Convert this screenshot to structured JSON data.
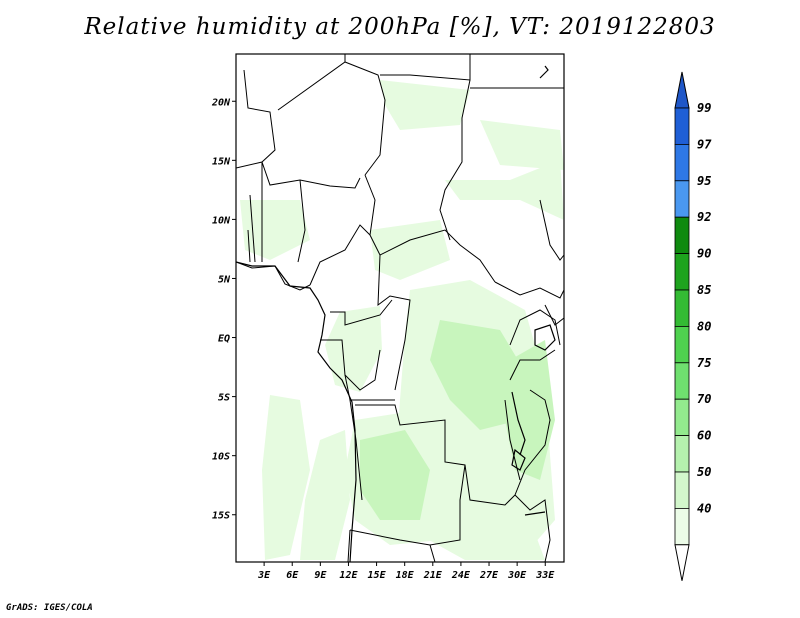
{
  "title": "Relative humidity at 200hPa [%], VT: 2019122803",
  "credit": "GrADS: IGES/COLA",
  "map": {
    "lat_range": [
      -19,
      24
    ],
    "lon_range": [
      0,
      35
    ],
    "lat_labels": [
      {
        "v": 20,
        "t": "20N"
      },
      {
        "v": 15,
        "t": "15N"
      },
      {
        "v": 10,
        "t": "10N"
      },
      {
        "v": 5,
        "t": "5N"
      },
      {
        "v": 0,
        "t": "EQ"
      },
      {
        "v": -5,
        "t": "5S"
      },
      {
        "v": -10,
        "t": "10S"
      },
      {
        "v": -15,
        "t": "15S"
      }
    ],
    "lon_labels": [
      {
        "v": 3,
        "t": "3E"
      },
      {
        "v": 6,
        "t": "6E"
      },
      {
        "v": 9,
        "t": "9E"
      },
      {
        "v": 12,
        "t": "12E"
      },
      {
        "v": 15,
        "t": "15E"
      },
      {
        "v": 18,
        "t": "18E"
      },
      {
        "v": 21,
        "t": "21E"
      },
      {
        "v": 24,
        "t": "24E"
      },
      {
        "v": 27,
        "t": "27E"
      },
      {
        "v": 30,
        "t": "30E"
      },
      {
        "v": 33,
        "t": "33E"
      }
    ],
    "fill_colors": {
      "light": "#e6fbe0",
      "medium": "#c8f5bd"
    }
  },
  "colorbar": {
    "levels": [
      {
        "label": "99",
        "color": "#1f5fd6"
      },
      {
        "label": "97",
        "color": "#2e78e6"
      },
      {
        "label": "95",
        "color": "#4a98f0"
      },
      {
        "label": "92",
        "color": "#0f8a0f"
      },
      {
        "label": "90",
        "color": "#1ea31e"
      },
      {
        "label": "85",
        "color": "#34bb34"
      },
      {
        "label": "80",
        "color": "#4fd24f"
      },
      {
        "label": "75",
        "color": "#6fe06f"
      },
      {
        "label": "70",
        "color": "#93ea8e"
      },
      {
        "label": "60",
        "color": "#b5f1ae"
      },
      {
        "label": "50",
        "color": "#d3f7cc"
      },
      {
        "label": "40",
        "color": "#ecfce8"
      }
    ],
    "top_color": "#1f57c8",
    "bottom_color": "#ffffff"
  }
}
